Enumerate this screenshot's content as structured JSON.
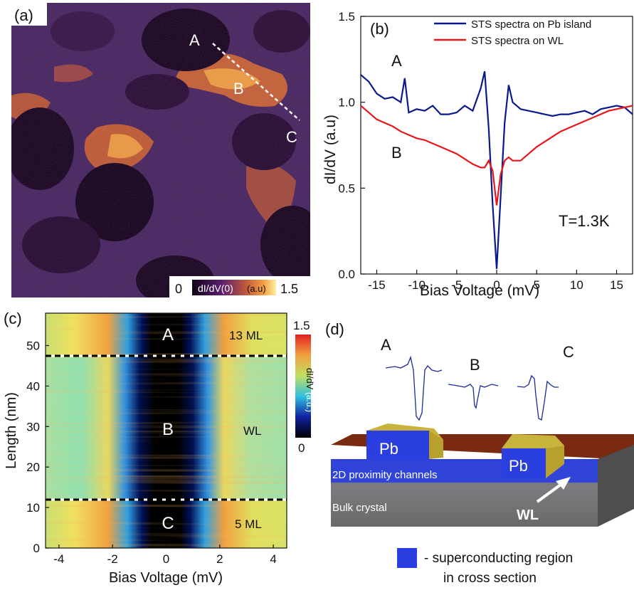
{
  "panel_a": {
    "label": "(a)",
    "points": [
      "A",
      "B",
      "C"
    ],
    "colorbar": {
      "min": "0",
      "title": "dI/dV(0)",
      "unit": "(a.u)",
      "max": "1.5"
    }
  },
  "panel_b": {
    "label": "(b)",
    "curve_labels": [
      "A",
      "B"
    ],
    "temperature": "T=1.3K"
  },
  "panel_c": {
    "label": "(c)",
    "region_labels": [
      "A",
      "B",
      "C"
    ],
    "thickness_labels": [
      "13 ML",
      "WL",
      "5 ML"
    ],
    "colorbar": {
      "max": "1.5",
      "min": "0",
      "title": "dI/dV",
      "unit": "(a.u.)"
    }
  },
  "panel_d": {
    "label": "(d)",
    "spectrum_labels": [
      "A",
      "B",
      "C"
    ],
    "island_labels": [
      "Pb",
      "Pb"
    ],
    "channel_text": "2D proximity channels",
    "crystal_text": "Bulk crystal",
    "wl_text": "WL",
    "legend_line1": "- superconducting region",
    "legend_line2": "in cross section",
    "legend_color": "#2b3fe0"
  },
  "chart_data": [
    {
      "type": "line",
      "title": "",
      "xlabel": "Bias Voltage (mV)",
      "ylabel": "dI/dV (a.u)",
      "xlim": [
        -17,
        17
      ],
      "ylim": [
        0,
        1.5
      ],
      "xticks": [
        "-15",
        "-10",
        "-5",
        "0",
        "5",
        "10",
        "15"
      ],
      "yticks": [
        "0.0",
        "0.5",
        "1.0",
        "1.5"
      ],
      "legend_position": "top-right",
      "series": [
        {
          "name": "STS spectra on Pb island",
          "color": "#0a1a8c",
          "x": [
            -17,
            -16,
            -15,
            -14,
            -13,
            -12,
            -11.5,
            -11,
            -10,
            -9,
            -8,
            -7,
            -6,
            -5,
            -4,
            -3,
            -2,
            -1.5,
            -1,
            -0.5,
            0,
            0.5,
            1,
            1.5,
            2,
            3,
            4,
            5,
            6,
            7,
            8,
            9,
            10,
            11,
            12,
            13,
            14,
            15,
            16,
            17
          ],
          "y": [
            1.16,
            1.12,
            1.05,
            1.02,
            1.03,
            1.0,
            1.14,
            0.94,
            0.96,
            0.95,
            0.98,
            0.93,
            0.93,
            0.94,
            0.98,
            0.95,
            1.08,
            1.18,
            0.85,
            0.4,
            0.03,
            0.45,
            0.88,
            1.1,
            1.0,
            0.96,
            0.95,
            0.94,
            0.93,
            0.92,
            0.93,
            0.93,
            0.94,
            0.95,
            0.93,
            0.96,
            0.97,
            0.98,
            0.97,
            0.93
          ]
        },
        {
          "name": "STS spectra on WL",
          "color": "#e8161b",
          "x": [
            -17,
            -16,
            -15,
            -14,
            -13,
            -12,
            -11,
            -10,
            -9,
            -8,
            -7,
            -6,
            -5,
            -4,
            -3,
            -2,
            -1.5,
            -1,
            -0.5,
            0,
            0.5,
            1,
            1.5,
            2,
            3,
            4,
            5,
            6,
            7,
            8,
            9,
            10,
            11,
            12,
            13,
            14,
            15,
            16,
            17
          ],
          "y": [
            0.98,
            0.94,
            0.9,
            0.88,
            0.86,
            0.83,
            0.81,
            0.79,
            0.78,
            0.76,
            0.74,
            0.72,
            0.7,
            0.67,
            0.64,
            0.62,
            0.62,
            0.66,
            0.6,
            0.4,
            0.58,
            0.66,
            0.68,
            0.66,
            0.66,
            0.7,
            0.74,
            0.77,
            0.8,
            0.83,
            0.85,
            0.87,
            0.89,
            0.91,
            0.93,
            0.95,
            0.96,
            0.97,
            0.98
          ]
        }
      ]
    },
    {
      "type": "heatmap",
      "xlabel": "Bias Voltage (mV)",
      "ylabel": "Length (nm)",
      "xlim": [
        -4.5,
        4.5
      ],
      "ylim": [
        0,
        58
      ],
      "xticks": [
        "-4",
        "-2",
        "0",
        "2",
        "4"
      ],
      "yticks": [
        "0",
        "10",
        "20",
        "30",
        "40",
        "50"
      ],
      "boundaries_nm": [
        12.5,
        49
      ]
    }
  ]
}
